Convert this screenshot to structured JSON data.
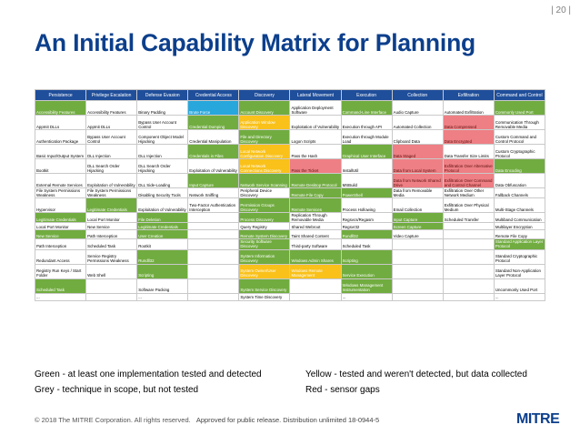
{
  "page_number": "| 20 |",
  "title": "An Initial Capability Matrix for Planning",
  "matrix": {
    "headers": [
      "Persistence",
      "Privilege Escalation",
      "Defense Evasion",
      "Credential Access",
      "Discovery",
      "Lateral Movement",
      "Execution",
      "Collection",
      "Exfiltration",
      "Command and Control"
    ],
    "rows": [
      {
        "h": "r1",
        "cells": [
          {
            "t": "Accessibility Features",
            "c": "g"
          },
          {
            "t": "Accessibility Features",
            "c": "w"
          },
          {
            "t": "Binary Padding",
            "c": "w"
          },
          {
            "t": "Brute Force",
            "c": "b"
          },
          {
            "t": "Account Discovery",
            "c": "g"
          },
          {
            "t": "Application Deployment Software",
            "c": "w"
          },
          {
            "t": "Command-Line Interface",
            "c": "g"
          },
          {
            "t": "Audio Capture",
            "c": "w"
          },
          {
            "t": "Automated Exfiltration",
            "c": "w"
          },
          {
            "t": "Commonly Used Port",
            "c": "g"
          }
        ]
      },
      {
        "h": "r1",
        "cells": [
          {
            "t": "AppInit DLLs",
            "c": "w"
          },
          {
            "t": "AppInit DLLs",
            "c": "w"
          },
          {
            "t": "Bypass User Account Control",
            "c": "w"
          },
          {
            "t": "Credential Dumping",
            "c": "g"
          },
          {
            "t": "Application Window Discovery",
            "c": "y"
          },
          {
            "t": "Exploitation of Vulnerability",
            "c": "w"
          },
          {
            "t": "Execution through API",
            "c": "w"
          },
          {
            "t": "Automated Collection",
            "c": "w"
          },
          {
            "t": "Data Compressed",
            "c": "r"
          },
          {
            "t": "Communication Through Removable Media",
            "c": "w"
          }
        ]
      },
      {
        "h": "r1",
        "cells": [
          {
            "t": "Authentication Package",
            "c": "w"
          },
          {
            "t": "Bypass User Account Control",
            "c": "w"
          },
          {
            "t": "Component Object Model Hijacking",
            "c": "w"
          },
          {
            "t": "Credential Manipulation",
            "c": "w"
          },
          {
            "t": "File and Directory Discovery",
            "c": "g"
          },
          {
            "t": "Logon Scripts",
            "c": "w"
          },
          {
            "t": "Execution through Module Load",
            "c": "w"
          },
          {
            "t": "Clipboard Data",
            "c": "w"
          },
          {
            "t": "Data Encrypted",
            "c": "r"
          },
          {
            "t": "Custom Command and Control Protocol",
            "c": "w"
          }
        ]
      },
      {
        "h": "r1",
        "cells": [
          {
            "t": "Basic Input/Output System",
            "c": "w"
          },
          {
            "t": "DLL Injection",
            "c": "w"
          },
          {
            "t": "DLL Injection",
            "c": "w"
          },
          {
            "t": "Credentials in Files",
            "c": "g"
          },
          {
            "t": "Local Network Configuration Discovery",
            "c": "y"
          },
          {
            "t": "Pass the Hash",
            "c": "w"
          },
          {
            "t": "Graphical User Interface",
            "c": "g"
          },
          {
            "t": "Data Staged",
            "c": "r"
          },
          {
            "t": "Data Transfer Size Limits",
            "c": "w"
          },
          {
            "t": "Custom Cryptographic Protocol",
            "c": "w"
          }
        ]
      },
      {
        "h": "r1",
        "cells": [
          {
            "t": "Bootkit",
            "c": "w"
          },
          {
            "t": "DLL Search Order Hijacking",
            "c": "w"
          },
          {
            "t": "DLL Search Order Hijacking",
            "c": "w"
          },
          {
            "t": "Exploitation of Vulnerability",
            "c": "w"
          },
          {
            "t": "Local Network Connections Discovery",
            "c": "y"
          },
          {
            "t": "Pass the Ticket",
            "c": "r"
          },
          {
            "t": "InstallUtil",
            "c": "w"
          },
          {
            "t": "Data from Local System",
            "c": "r"
          },
          {
            "t": "Exfiltration Over Alternative Protocol",
            "c": "r"
          },
          {
            "t": "Data Encoding",
            "c": "g"
          }
        ]
      },
      {
        "h": "r1",
        "cells": [
          {
            "t": "External Remote Services",
            "c": "w"
          },
          {
            "t": "Exploitation of Vulnerability",
            "c": "w"
          },
          {
            "t": "DLL Side-Loading",
            "c": "w"
          },
          {
            "t": "Input Capture",
            "c": "g"
          },
          {
            "t": "Network Service Scanning",
            "c": "g"
          },
          {
            "t": "Remote Desktop Protocol",
            "c": "g"
          },
          {
            "t": "MSBuild",
            "c": "w"
          },
          {
            "t": "Data from Network Shared Drive",
            "c": "r"
          },
          {
            "t": "Exfiltration Over Command and Control Channel",
            "c": "r"
          },
          {
            "t": "Data Obfuscation",
            "c": "w"
          }
        ]
      },
      {
        "h": "r2",
        "cells": [
          {
            "t": "File System Permissions Weakness",
            "c": "w"
          },
          {
            "t": "File System Permissions Weakness",
            "c": "w"
          },
          {
            "t": "Disabling Security Tools",
            "c": "w"
          },
          {
            "t": "Network Sniffing",
            "c": "w"
          },
          {
            "t": "Peripheral Device Discovery",
            "c": "w"
          },
          {
            "t": "Remote File Copy",
            "c": "g"
          },
          {
            "t": "PowerShell",
            "c": "g"
          },
          {
            "t": "Data from Removable Media",
            "c": "w"
          },
          {
            "t": "Exfiltration Over Other Network Medium",
            "c": "w"
          },
          {
            "t": "Fallback Channels",
            "c": "w"
          }
        ]
      },
      {
        "h": "r1",
        "cells": [
          {
            "t": "Hypervisor",
            "c": "w"
          },
          {
            "t": "Legitimate Credentials",
            "c": "g"
          },
          {
            "t": "Exploitation of Vulnerability",
            "c": "w"
          },
          {
            "t": "Two-Factor Authentication Interception",
            "c": "w"
          },
          {
            "t": "Permission Groups Discovery",
            "c": "g"
          },
          {
            "t": "Remote Services",
            "c": "g"
          },
          {
            "t": "Process Hollowing",
            "c": "w"
          },
          {
            "t": "Email Collection",
            "c": "w"
          },
          {
            "t": "Exfiltration Over Physical Medium",
            "c": "w"
          },
          {
            "t": "Multi-Stage Channels",
            "c": "w"
          }
        ]
      },
      {
        "h": "r2",
        "cells": [
          {
            "t": "Legitimate Credentials",
            "c": "g"
          },
          {
            "t": "Local Port Monitor",
            "c": "w"
          },
          {
            "t": "File Deletion",
            "c": "g"
          },
          {
            "t": "",
            "c": "e"
          },
          {
            "t": "Process Discovery",
            "c": "g"
          },
          {
            "t": "Replication Through Removable Media",
            "c": "w"
          },
          {
            "t": "Regsvcs/Regasm",
            "c": "w"
          },
          {
            "t": "Input Capture",
            "c": "g"
          },
          {
            "t": "Scheduled Transfer",
            "c": "w"
          },
          {
            "t": "Multiband Communication",
            "c": "w"
          }
        ]
      },
      {
        "h": "r3",
        "cells": [
          {
            "t": "Local Port Monitor",
            "c": "w"
          },
          {
            "t": "New Service",
            "c": "w"
          },
          {
            "t": "Legitimate Credentials",
            "c": "g"
          },
          {
            "t": "",
            "c": "e"
          },
          {
            "t": "Query Registry",
            "c": "w"
          },
          {
            "t": "Shared Webroot",
            "c": "w"
          },
          {
            "t": "Regsvr32",
            "c": "w"
          },
          {
            "t": "Screen Capture",
            "c": "g"
          },
          {
            "t": "",
            "c": "e"
          },
          {
            "t": "Multilayer Encryption",
            "c": "w"
          }
        ]
      },
      {
        "h": "r2",
        "cells": [
          {
            "t": "New Service",
            "c": "g"
          },
          {
            "t": "Path Interception",
            "c": "w"
          },
          {
            "t": "User Creation",
            "c": "g"
          },
          {
            "t": "",
            "c": "e"
          },
          {
            "t": "Remote System Discovery",
            "c": "g"
          },
          {
            "t": "Taint Shared Content",
            "c": "w"
          },
          {
            "t": "Rundll32",
            "c": "g"
          },
          {
            "t": "Video Capture",
            "c": "w"
          },
          {
            "t": "",
            "c": "e"
          },
          {
            "t": "Remote File Copy",
            "c": "w"
          }
        ]
      },
      {
        "h": "r2",
        "cells": [
          {
            "t": "Path Interception",
            "c": "w"
          },
          {
            "t": "Scheduled Task",
            "c": "w"
          },
          {
            "t": "Rootkit",
            "c": "w"
          },
          {
            "t": "",
            "c": "e"
          },
          {
            "t": "Security Software Discovery",
            "c": "g"
          },
          {
            "t": "Third-party Software",
            "c": "w"
          },
          {
            "t": "Scheduled Task",
            "c": "w"
          },
          {
            "t": "",
            "c": "e"
          },
          {
            "t": "",
            "c": "e"
          },
          {
            "t": "Standard Application Layer Protocol",
            "c": "g"
          }
        ]
      },
      {
        "h": "r1",
        "cells": [
          {
            "t": "Redundant Access",
            "c": "w"
          },
          {
            "t": "Service Registry Permissions Weakness",
            "c": "w"
          },
          {
            "t": "Rundll32",
            "c": "g"
          },
          {
            "t": "",
            "c": "e"
          },
          {
            "t": "System Information Discovery",
            "c": "g"
          },
          {
            "t": "Windows Admin Shares",
            "c": "g"
          },
          {
            "t": "Scripting",
            "c": "g"
          },
          {
            "t": "",
            "c": "e"
          },
          {
            "t": "",
            "c": "e"
          },
          {
            "t": "Standard Cryptographic Protocol",
            "c": "w"
          }
        ]
      },
      {
        "h": "r1",
        "cells": [
          {
            "t": "Registry Run Keys / Start Folder",
            "c": "w"
          },
          {
            "t": "Web Shell",
            "c": "w"
          },
          {
            "t": "Scripting",
            "c": "g"
          },
          {
            "t": "",
            "c": "e"
          },
          {
            "t": "System Owner/User Discovery",
            "c": "y"
          },
          {
            "t": "Windows Remote Management",
            "c": "y"
          },
          {
            "t": "Service Execution",
            "c": "g"
          },
          {
            "t": "",
            "c": "e"
          },
          {
            "t": "",
            "c": "e"
          },
          {
            "t": "Standard Non-Application Layer Protocol",
            "c": "w"
          }
        ]
      },
      {
        "h": "r1",
        "cells": [
          {
            "t": "Scheduled Task",
            "c": "g"
          },
          {
            "t": "",
            "c": "e"
          },
          {
            "t": "Software Packing",
            "c": "w"
          },
          {
            "t": "",
            "c": "e"
          },
          {
            "t": "System Service Discovery",
            "c": "g"
          },
          {
            "t": "",
            "c": "e"
          },
          {
            "t": "Windows Management Instrumentation",
            "c": "g"
          },
          {
            "t": "",
            "c": "e"
          },
          {
            "t": "",
            "c": "e"
          },
          {
            "t": "Uncommonly Used Port",
            "c": "w"
          }
        ]
      },
      {
        "h": "r3",
        "cells": [
          {
            "t": "...",
            "c": "w"
          },
          {
            "t": "",
            "c": "e"
          },
          {
            "t": "...",
            "c": "w"
          },
          {
            "t": "",
            "c": "e"
          },
          {
            "t": "System Time Discovery",
            "c": "w"
          },
          {
            "t": "",
            "c": "e"
          },
          {
            "t": "...",
            "c": "w"
          },
          {
            "t": "",
            "c": "e"
          },
          {
            "t": "",
            "c": "e"
          },
          {
            "t": "...",
            "c": "w"
          }
        ]
      }
    ]
  },
  "legend": {
    "green": "Green - at least one implementation tested and detected",
    "yellow": "Yellow - tested and weren't detected, but data collected",
    "grey": "Grey - technique in scope, but not tested",
    "red": "Red - sensor gaps"
  },
  "footer": {
    "copyright": "© 2018 The MITRE Corporation. All rights reserved.",
    "notice": "Approved for public release. Distribution unlimited 18-0944-5"
  },
  "logo": "MITRE",
  "colors": {
    "title": "#0c3f8c",
    "header": "#1f4e9a",
    "green": "#71ac40",
    "yellow": "#f9c11a",
    "red": "#ee7f84",
    "blue": "#27a7db"
  }
}
